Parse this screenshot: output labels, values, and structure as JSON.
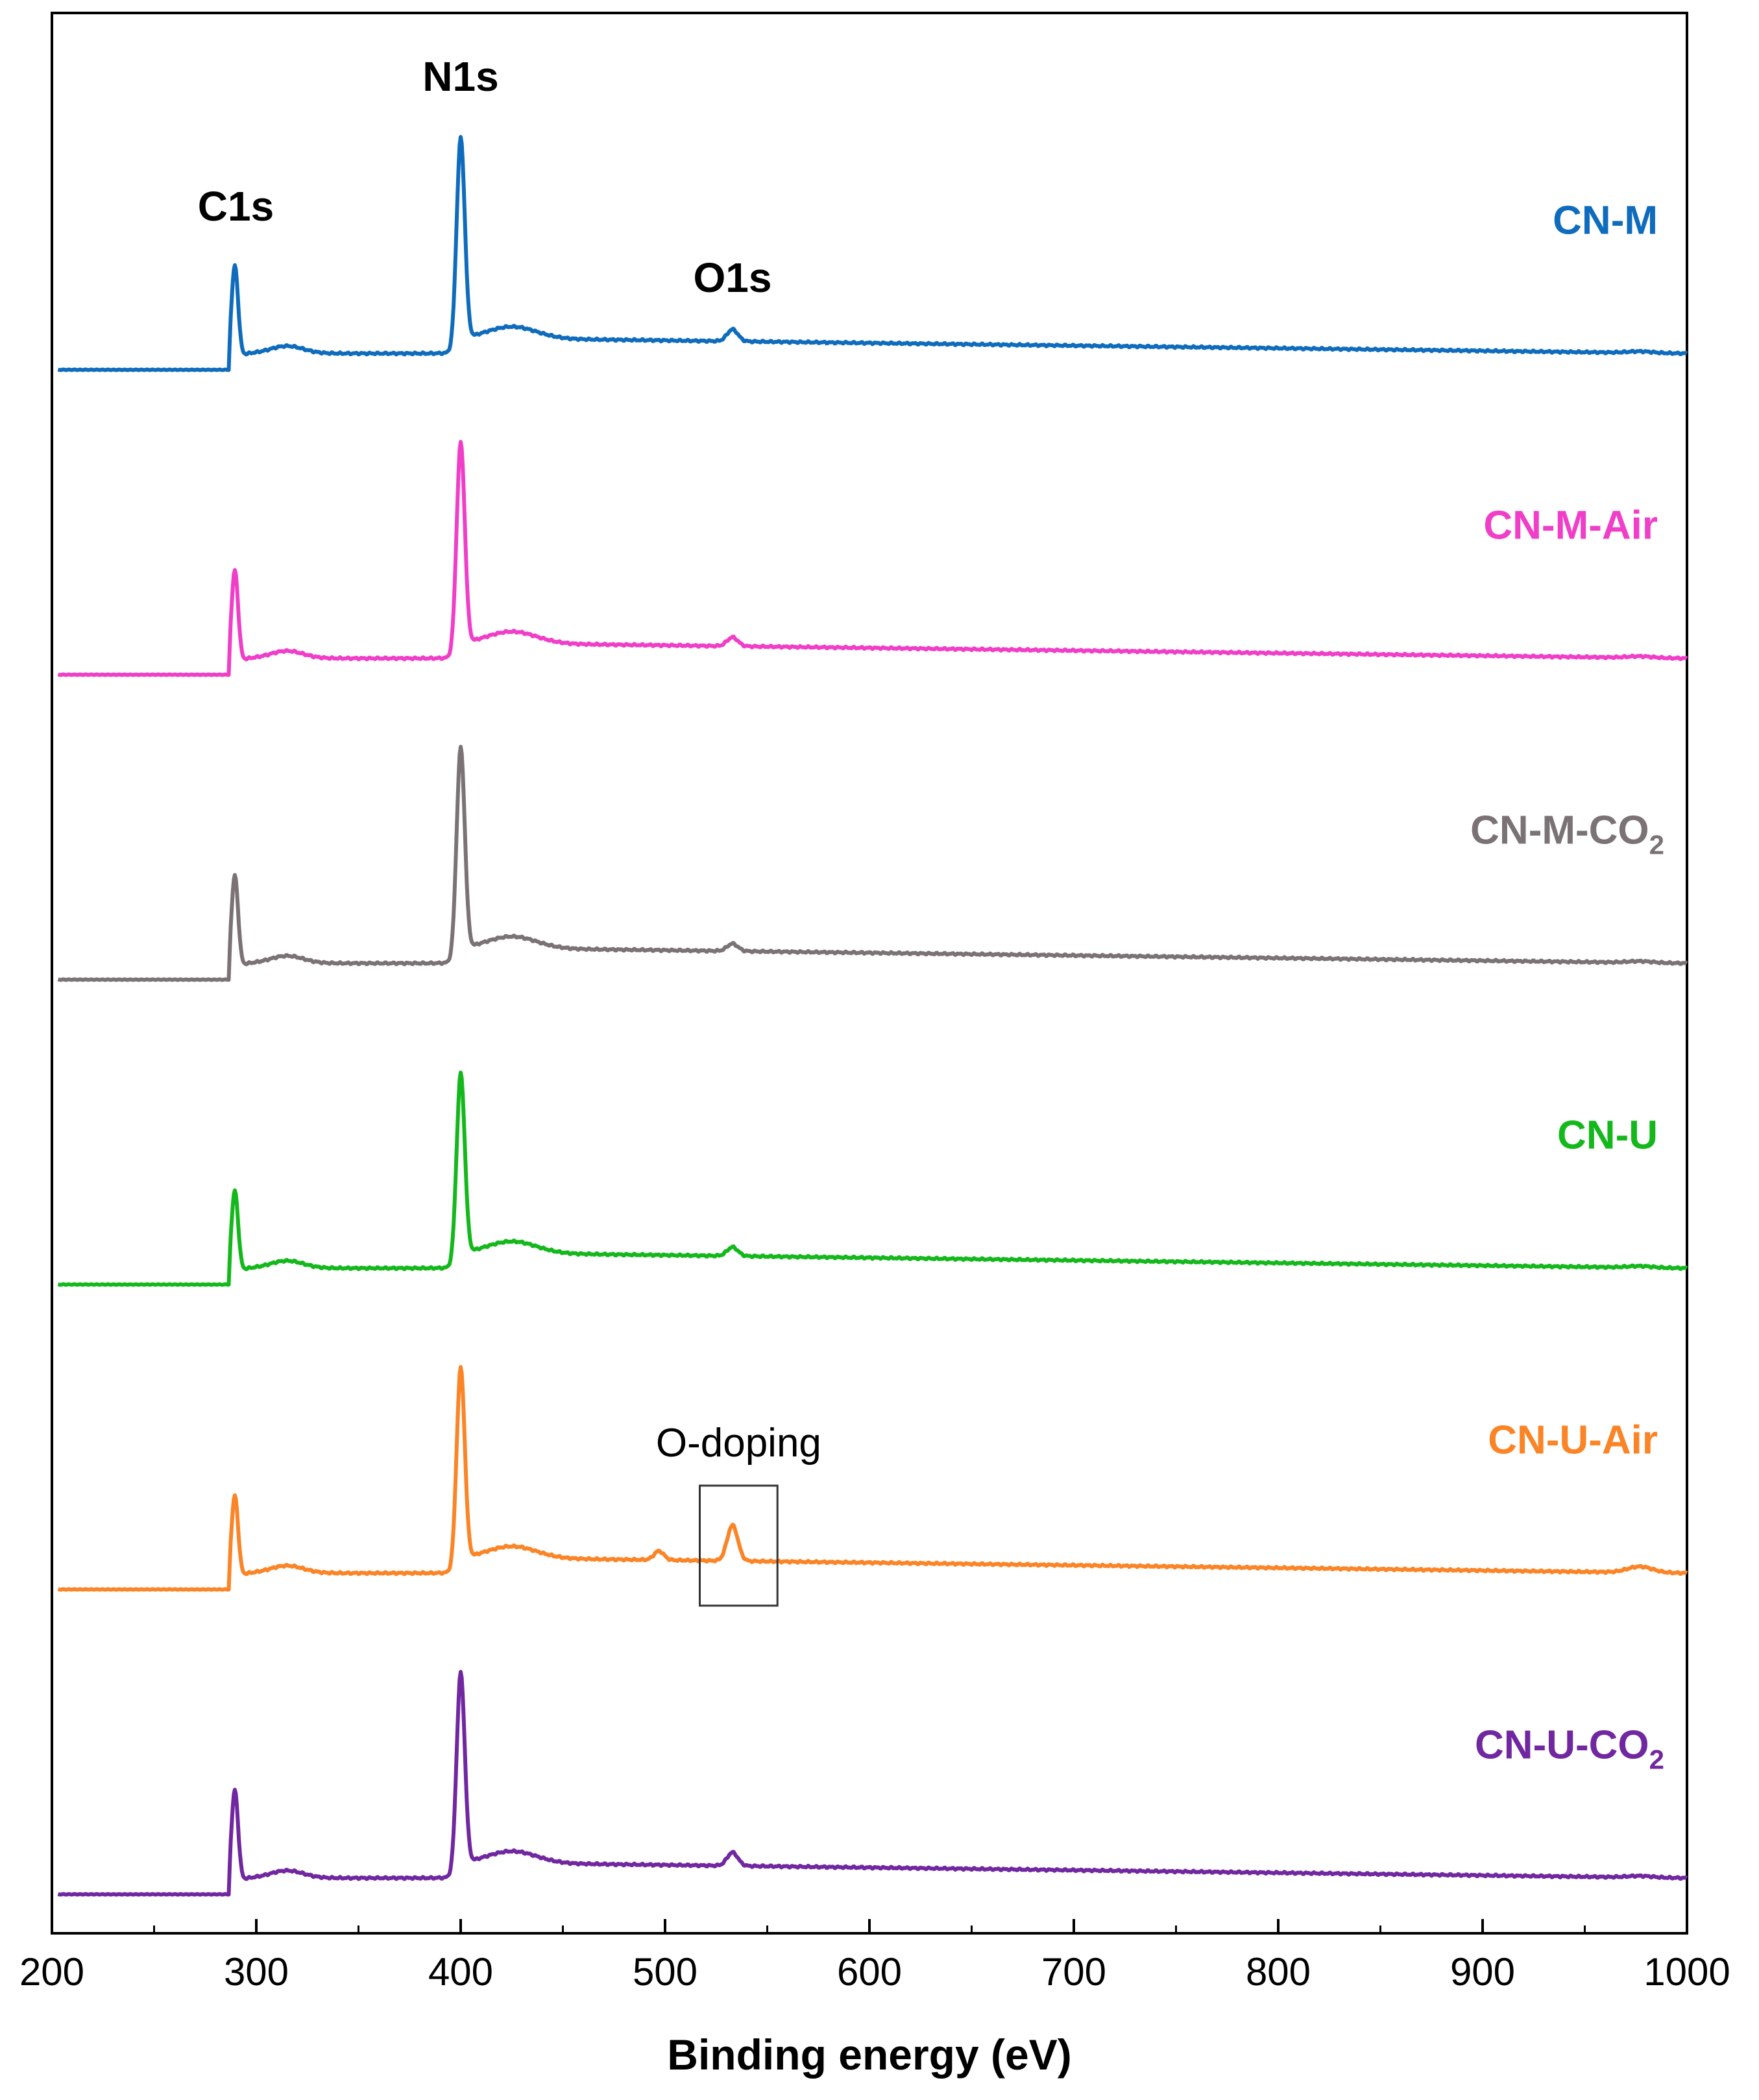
{
  "chart_data": {
    "type": "line",
    "xlabel": "Binding energy (eV)",
    "ylabel": "",
    "xlim": [
      200,
      1000
    ],
    "xticks": [
      "200",
      "300",
      "400",
      "500",
      "600",
      "700",
      "800",
      "900",
      "1000"
    ],
    "grid": false,
    "legend": "inline labels at right of each curve",
    "stacked_offset": true,
    "peak_labels": [
      {
        "text": "C1s",
        "x": 290
      },
      {
        "text": "N1s",
        "x": 400
      },
      {
        "text": "O1s",
        "x": 533
      }
    ],
    "annotation": {
      "text": "O-doping",
      "x_range": [
        517,
        555
      ]
    },
    "series": [
      {
        "name": "CN-M",
        "subscript": "",
        "color": "#0f6cbd",
        "baseline": 0.4,
        "c1s": 0.62,
        "n1s": 1.42,
        "o1s": 0.08,
        "extra_498": 0.0,
        "end_bump": 0.01
      },
      {
        "name": "CN-M-Air",
        "subscript": "",
        "color": "#f03ec8",
        "baseline": 0.4,
        "c1s": 0.62,
        "n1s": 1.42,
        "o1s": 0.06,
        "extra_498": 0.0,
        "end_bump": 0.01
      },
      {
        "name": "CN-M-CO",
        "subscript": "2",
        "color": "#7a7274",
        "baseline": 0.4,
        "c1s": 0.62,
        "n1s": 1.42,
        "o1s": 0.05,
        "extra_498": 0.0,
        "end_bump": 0.01
      },
      {
        "name": "CN-U",
        "subscript": "",
        "color": "#15b81c",
        "baseline": 0.4,
        "c1s": 0.55,
        "n1s": 1.28,
        "o1s": 0.06,
        "extra_498": 0.0,
        "end_bump": 0.01
      },
      {
        "name": "CN-U-Air",
        "subscript": "",
        "color": "#fb8426",
        "baseline": 0.4,
        "c1s": 0.55,
        "n1s": 1.35,
        "o1s": 0.24,
        "extra_498": 0.06,
        "end_bump": 0.04
      },
      {
        "name": "CN-U-CO",
        "subscript": "2",
        "color": "#7027a0",
        "baseline": 0.4,
        "c1s": 0.62,
        "n1s": 1.35,
        "o1s": 0.09,
        "extra_498": 0.0,
        "end_bump": 0.01
      }
    ]
  }
}
